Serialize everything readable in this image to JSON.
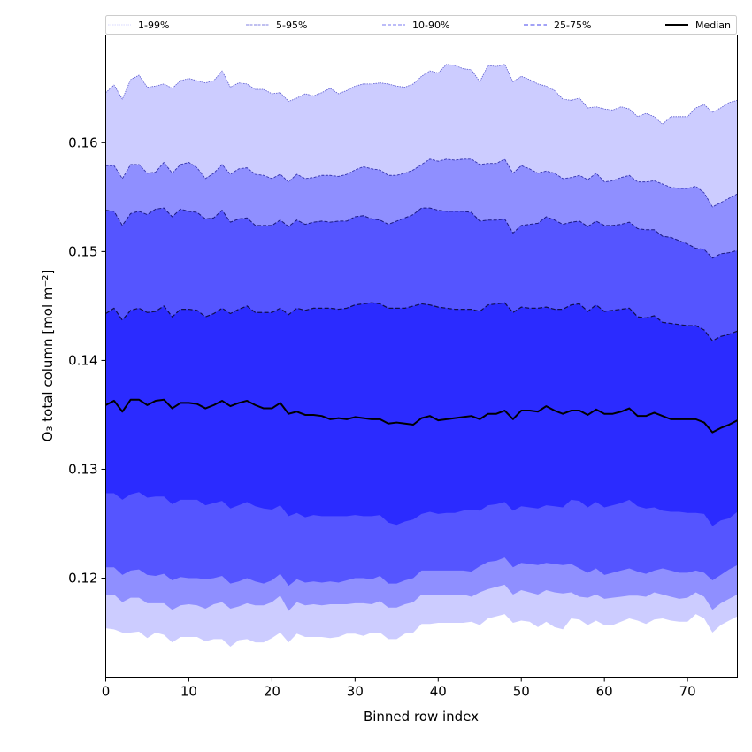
{
  "chart_data": {
    "type": "area",
    "title": "",
    "xlabel": "Binned row index",
    "ylabel": "O₃ total column [mol m⁻²]",
    "xlim": [
      0,
      76
    ],
    "ylim": [
      0.1109,
      0.1699
    ],
    "xticks": [
      0,
      10,
      20,
      30,
      40,
      50,
      60,
      70
    ],
    "xtick_labels": [
      "0",
      "10",
      "20",
      "30",
      "40",
      "50",
      "60",
      "70"
    ],
    "yticks": [
      0.12,
      0.13,
      0.14,
      0.15,
      0.16
    ],
    "ytick_labels": [
      "0.12",
      "0.13",
      "0.14",
      "0.15",
      "0.16"
    ],
    "grid": false,
    "legend": {
      "placement": "top (above plot, single row)",
      "entries": [
        {
          "label": "1-99%",
          "color": "#ccccff",
          "style": "dotted"
        },
        {
          "label": "5-95%",
          "color": "#7070e8",
          "style": "dashed"
        },
        {
          "label": "10-90%",
          "color": "#5555ee",
          "style": "dashed"
        },
        {
          "label": "25-75%",
          "color": "#3a3ae0",
          "style": "dashed"
        },
        {
          "label": "Median",
          "color": "#000000",
          "style": "solid"
        }
      ]
    },
    "band_colors": {
      "1-99%": "#ccccff",
      "5-95%": "#8f8fff",
      "10-90%": "#5555ff",
      "25-75%": "#2b2bff"
    },
    "line_colors": {
      "p99": "#5a5ad0",
      "p95": "#3535b0",
      "p90": "#1a1a80",
      "p75": "#10104a",
      "median": "#000000"
    },
    "x_start": 0,
    "series": [
      {
        "name": "p99",
        "values": [
          0.1646,
          0.1653,
          0.164,
          0.1658,
          0.1662,
          0.1651,
          0.1652,
          0.1654,
          0.165,
          0.1657,
          0.1659,
          0.1657,
          0.1655,
          0.1657,
          0.1666,
          0.1651,
          0.1655,
          0.1654,
          0.1649,
          0.1649,
          0.1645,
          0.1646,
          0.1638,
          0.1641,
          0.1645,
          0.1643,
          0.1646,
          0.165,
          0.1645,
          0.1648,
          0.1652,
          0.1654,
          0.1654,
          0.1655,
          0.1654,
          0.1652,
          0.1651,
          0.1654,
          0.1661,
          0.1666,
          0.1664,
          0.1672,
          0.1671,
          0.1668,
          0.1667,
          0.1656,
          0.1671,
          0.167,
          0.1672,
          0.1656,
          0.1661,
          0.1658,
          0.1654,
          0.1652,
          0.1648,
          0.164,
          0.1639,
          0.1641,
          0.1632,
          0.1633,
          0.1631,
          0.163,
          0.1633,
          0.1631,
          0.1624,
          0.1627,
          0.1624,
          0.1617,
          0.1624,
          0.1624,
          0.1624,
          0.1632,
          0.1635,
          0.1628,
          0.1632,
          0.1637,
          0.1639
        ]
      },
      {
        "name": "p95",
        "values": [
          0.1579,
          0.1579,
          0.1567,
          0.158,
          0.158,
          0.1572,
          0.1573,
          0.1582,
          0.1572,
          0.158,
          0.1582,
          0.1577,
          0.1567,
          0.1572,
          0.158,
          0.1571,
          0.1576,
          0.1577,
          0.1571,
          0.157,
          0.1567,
          0.1571,
          0.1564,
          0.1571,
          0.1567,
          0.1568,
          0.157,
          0.157,
          0.1569,
          0.1571,
          0.1575,
          0.1578,
          0.1576,
          0.1575,
          0.157,
          0.157,
          0.1572,
          0.1575,
          0.158,
          0.1585,
          0.1583,
          0.1585,
          0.1584,
          0.1585,
          0.1585,
          0.158,
          0.1581,
          0.1581,
          0.1585,
          0.1572,
          0.1579,
          0.1576,
          0.1572,
          0.1574,
          0.1572,
          0.1567,
          0.1568,
          0.157,
          0.1566,
          0.1572,
          0.1564,
          0.1565,
          0.1568,
          0.157,
          0.1564,
          0.1564,
          0.1565,
          0.1562,
          0.1559,
          0.1558,
          0.1558,
          0.156,
          0.1554,
          0.1541,
          0.1545,
          0.1549,
          0.1553
        ]
      },
      {
        "name": "p90",
        "values": [
          0.1538,
          0.1537,
          0.1524,
          0.1535,
          0.1537,
          0.1534,
          0.1539,
          0.154,
          0.1532,
          0.1539,
          0.1537,
          0.1536,
          0.153,
          0.1531,
          0.1538,
          0.1527,
          0.153,
          0.1531,
          0.1524,
          0.1524,
          0.1524,
          0.1529,
          0.1523,
          0.1529,
          0.1525,
          0.1527,
          0.1528,
          0.1527,
          0.1528,
          0.1528,
          0.1532,
          0.1533,
          0.153,
          0.1529,
          0.1525,
          0.1528,
          0.1531,
          0.1534,
          0.154,
          0.154,
          0.1538,
          0.1537,
          0.1537,
          0.1537,
          0.1536,
          0.1528,
          0.1529,
          0.1529,
          0.153,
          0.1517,
          0.1524,
          0.1525,
          0.1526,
          0.1532,
          0.1529,
          0.1525,
          0.1527,
          0.1528,
          0.1523,
          0.1528,
          0.1524,
          0.1524,
          0.1525,
          0.1527,
          0.1521,
          0.152,
          0.152,
          0.1514,
          0.1513,
          0.151,
          0.1507,
          0.1503,
          0.1502,
          0.1494,
          0.1498,
          0.1499,
          0.1501
        ]
      },
      {
        "name": "p75",
        "values": [
          0.1443,
          0.1448,
          0.1437,
          0.1446,
          0.1448,
          0.1444,
          0.1445,
          0.145,
          0.144,
          0.1447,
          0.1447,
          0.1446,
          0.144,
          0.1443,
          0.1448,
          0.1443,
          0.1447,
          0.145,
          0.1444,
          0.1444,
          0.1444,
          0.1448,
          0.1442,
          0.1448,
          0.1446,
          0.1448,
          0.1448,
          0.1448,
          0.1447,
          0.1448,
          0.1451,
          0.1452,
          0.1453,
          0.1452,
          0.1448,
          0.1448,
          0.1448,
          0.145,
          0.1452,
          0.1451,
          0.1449,
          0.1448,
          0.1447,
          0.1447,
          0.1447,
          0.1445,
          0.1451,
          0.1452,
          0.1453,
          0.1444,
          0.1449,
          0.1448,
          0.1448,
          0.1449,
          0.1447,
          0.1447,
          0.1451,
          0.1452,
          0.1445,
          0.1451,
          0.1445,
          0.1446,
          0.1447,
          0.1448,
          0.144,
          0.1439,
          0.1441,
          0.1435,
          0.1434,
          0.1433,
          0.1432,
          0.1432,
          0.1428,
          0.1418,
          0.1422,
          0.1424,
          0.1427
        ]
      },
      {
        "name": "median",
        "values": [
          0.1359,
          0.1363,
          0.1353,
          0.1364,
          0.1364,
          0.1359,
          0.1363,
          0.1364,
          0.1356,
          0.1361,
          0.1361,
          0.136,
          0.1356,
          0.1359,
          0.1363,
          0.1358,
          0.1361,
          0.1363,
          0.1359,
          0.1356,
          0.1356,
          0.1361,
          0.1351,
          0.1353,
          0.135,
          0.135,
          0.1349,
          0.1346,
          0.1347,
          0.1346,
          0.1348,
          0.1347,
          0.1346,
          0.1346,
          0.1342,
          0.1343,
          0.1342,
          0.1341,
          0.1347,
          0.1349,
          0.1345,
          0.1346,
          0.1347,
          0.1348,
          0.1349,
          0.1346,
          0.1351,
          0.1351,
          0.1354,
          0.1346,
          0.1354,
          0.1354,
          0.1353,
          0.1358,
          0.1354,
          0.1351,
          0.1354,
          0.1354,
          0.135,
          0.1355,
          0.1351,
          0.1351,
          0.1353,
          0.1356,
          0.1349,
          0.1349,
          0.1352,
          0.1349,
          0.1346,
          0.1346,
          0.1346,
          0.1346,
          0.1343,
          0.1334,
          0.1338,
          0.1341,
          0.1345
        ]
      },
      {
        "name": "p25",
        "values": [
          0.1278,
          0.1278,
          0.1272,
          0.1277,
          0.1279,
          0.1274,
          0.1275,
          0.1275,
          0.1268,
          0.1272,
          0.1272,
          0.1272,
          0.1267,
          0.1269,
          0.1271,
          0.1264,
          0.1267,
          0.127,
          0.1266,
          0.1264,
          0.1263,
          0.1267,
          0.1257,
          0.126,
          0.1256,
          0.1258,
          0.1257,
          0.1257,
          0.1257,
          0.1257,
          0.1258,
          0.1257,
          0.1257,
          0.1258,
          0.1251,
          0.1249,
          0.1252,
          0.1254,
          0.1259,
          0.1261,
          0.1259,
          0.126,
          0.126,
          0.1262,
          0.1263,
          0.1262,
          0.1267,
          0.1268,
          0.127,
          0.1262,
          0.1266,
          0.1265,
          0.1264,
          0.1267,
          0.1266,
          0.1265,
          0.1272,
          0.1271,
          0.1265,
          0.127,
          0.1265,
          0.1267,
          0.1269,
          0.1272,
          0.1266,
          0.1264,
          0.1265,
          0.1262,
          0.1261,
          0.1261,
          0.126,
          0.126,
          0.1259,
          0.1248,
          0.1253,
          0.1255,
          0.1261
        ]
      },
      {
        "name": "p10",
        "values": [
          0.121,
          0.121,
          0.1203,
          0.1207,
          0.1208,
          0.1203,
          0.1202,
          0.1204,
          0.1198,
          0.1201,
          0.12,
          0.12,
          0.1199,
          0.12,
          0.1202,
          0.1195,
          0.1197,
          0.12,
          0.1197,
          0.1195,
          0.1198,
          0.1204,
          0.1193,
          0.1199,
          0.1196,
          0.1197,
          0.1196,
          0.1197,
          0.1196,
          0.1198,
          0.12,
          0.12,
          0.1199,
          0.1202,
          0.1195,
          0.1195,
          0.1198,
          0.12,
          0.1207,
          0.1207,
          0.1207,
          0.1207,
          0.1207,
          0.1207,
          0.1206,
          0.1211,
          0.1215,
          0.1216,
          0.1219,
          0.121,
          0.1214,
          0.1213,
          0.1212,
          0.1214,
          0.1213,
          0.1212,
          0.1213,
          0.1209,
          0.1205,
          0.1209,
          0.1203,
          0.1205,
          0.1207,
          0.1209,
          0.1206,
          0.1204,
          0.1207,
          0.1209,
          0.1207,
          0.1205,
          0.1205,
          0.1207,
          0.1205,
          0.1198,
          0.1203,
          0.1208,
          0.1212
        ]
      },
      {
        "name": "p5",
        "values": [
          0.1185,
          0.1185,
          0.1178,
          0.1182,
          0.1182,
          0.1177,
          0.1177,
          0.1177,
          0.1171,
          0.1175,
          0.1176,
          0.1175,
          0.1172,
          0.1176,
          0.1178,
          0.1172,
          0.1174,
          0.1177,
          0.1175,
          0.1175,
          0.1178,
          0.1184,
          0.117,
          0.1178,
          0.1175,
          0.1176,
          0.1175,
          0.1176,
          0.1176,
          0.1176,
          0.1177,
          0.1177,
          0.1176,
          0.1179,
          0.1173,
          0.1173,
          0.1176,
          0.1178,
          0.1185,
          0.1185,
          0.1185,
          0.1185,
          0.1185,
          0.1185,
          0.1183,
          0.1187,
          0.119,
          0.1192,
          0.1194,
          0.1185,
          0.1189,
          0.1187,
          0.1185,
          0.1189,
          0.1187,
          0.1186,
          0.1187,
          0.1183,
          0.1182,
          0.1185,
          0.1181,
          0.1182,
          0.1183,
          0.1184,
          0.1184,
          0.1183,
          0.1187,
          0.1185,
          0.1183,
          0.1181,
          0.1182,
          0.1187,
          0.1183,
          0.1171,
          0.1177,
          0.1181,
          0.1185
        ]
      },
      {
        "name": "p1",
        "values": [
          0.1154,
          0.1153,
          0.115,
          0.115,
          0.1151,
          0.1145,
          0.115,
          0.1148,
          0.1141,
          0.1146,
          0.1146,
          0.1146,
          0.1142,
          0.1144,
          0.1144,
          0.1137,
          0.1143,
          0.1144,
          0.1141,
          0.1141,
          0.1145,
          0.115,
          0.1141,
          0.1149,
          0.1146,
          0.1146,
          0.1146,
          0.1145,
          0.1146,
          0.1149,
          0.1149,
          0.1147,
          0.115,
          0.115,
          0.1144,
          0.1144,
          0.1149,
          0.115,
          0.1158,
          0.1158,
          0.1159,
          0.1159,
          0.1159,
          0.1159,
          0.116,
          0.1157,
          0.1163,
          0.1165,
          0.1167,
          0.1159,
          0.1161,
          0.116,
          0.1155,
          0.116,
          0.1155,
          0.1153,
          0.1163,
          0.1162,
          0.1157,
          0.1161,
          0.1157,
          0.1157,
          0.116,
          0.1163,
          0.1161,
          0.1158,
          0.1162,
          0.1163,
          0.1161,
          0.116,
          0.116,
          0.1167,
          0.1163,
          0.115,
          0.1157,
          0.1161,
          0.1165
        ]
      }
    ]
  }
}
